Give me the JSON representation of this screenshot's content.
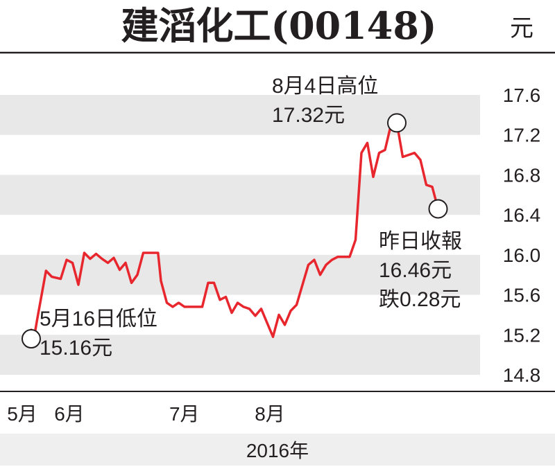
{
  "chart_data": {
    "type": "line",
    "title": "建滔化工(00148)",
    "unit": "元",
    "ylim": [
      14.8,
      17.6
    ],
    "yticks": [
      17.6,
      17.2,
      16.8,
      16.4,
      16.0,
      15.6,
      15.2,
      14.8
    ],
    "ytick_labels": [
      "17.6",
      "17.2",
      "16.8",
      "16.4",
      "16.0",
      "15.6",
      "15.2",
      "14.8"
    ],
    "xticks": [
      {
        "label": "5月",
        "t": 0
      },
      {
        "label": "6月",
        "t": 16
      },
      {
        "label": "7月",
        "t": 55
      },
      {
        "label": "8月",
        "t": 84
      }
    ],
    "xlabel": "2016年",
    "series": [
      {
        "color": "#e8262d",
        "points": [
          [
            4,
            15.25
          ],
          [
            5,
            15.18
          ],
          [
            6,
            15.35
          ],
          [
            9,
            15.84
          ],
          [
            11,
            15.78
          ],
          [
            14,
            15.76
          ],
          [
            16,
            15.95
          ],
          [
            18,
            15.92
          ],
          [
            20,
            15.7
          ],
          [
            22,
            16.02
          ],
          [
            24,
            15.96
          ],
          [
            26,
            16.01
          ],
          [
            28,
            15.96
          ],
          [
            30,
            15.92
          ],
          [
            32,
            15.97
          ],
          [
            34,
            15.85
          ],
          [
            36,
            15.92
          ],
          [
            38,
            15.72
          ],
          [
            40,
            15.8
          ],
          [
            42,
            16.02
          ],
          [
            45,
            16.02
          ],
          [
            47,
            16.02
          ],
          [
            48,
            15.74
          ],
          [
            50,
            15.52
          ],
          [
            52,
            15.48
          ],
          [
            54,
            15.52
          ],
          [
            56,
            15.48
          ],
          [
            58,
            15.48
          ],
          [
            60,
            15.48
          ],
          [
            62,
            15.48
          ],
          [
            64,
            15.72
          ],
          [
            66,
            15.72
          ],
          [
            68,
            15.55
          ],
          [
            70,
            15.58
          ],
          [
            72,
            15.42
          ],
          [
            74,
            15.52
          ],
          [
            76,
            15.48
          ],
          [
            78,
            15.46
          ],
          [
            80,
            15.39
          ],
          [
            82,
            15.46
          ],
          [
            84,
            15.32
          ],
          [
            86,
            15.18
          ],
          [
            88,
            15.4
          ],
          [
            90,
            15.3
          ],
          [
            92,
            15.44
          ],
          [
            94,
            15.5
          ],
          [
            96,
            15.7
          ],
          [
            98,
            15.9
          ],
          [
            100,
            15.95
          ],
          [
            102,
            15.8
          ],
          [
            104,
            15.9
          ],
          [
            106,
            15.95
          ],
          [
            108,
            15.98
          ],
          [
            110,
            15.98
          ],
          [
            112,
            15.98
          ],
          [
            114,
            16.15
          ],
          [
            116,
            17.02
          ],
          [
            118,
            17.12
          ],
          [
            120,
            16.78
          ],
          [
            122,
            17.02
          ],
          [
            124,
            17.05
          ],
          [
            126,
            17.3
          ],
          [
            128,
            17.32
          ],
          [
            130,
            16.98
          ],
          [
            132,
            17.0
          ],
          [
            134,
            17.02
          ],
          [
            136,
            16.95
          ],
          [
            138,
            16.7
          ],
          [
            140,
            16.68
          ],
          [
            142,
            16.46
          ]
        ]
      }
    ],
    "annotations": [
      {
        "name": "high",
        "lines": [
          "8月4日高位",
          "17.32元"
        ],
        "t": 128,
        "y": 17.32
      },
      {
        "name": "low",
        "lines": [
          "5月16日低位",
          "15.16元"
        ],
        "t": 4,
        "y": 15.16
      },
      {
        "name": "last",
        "lines": [
          "昨日收報",
          "16.46元",
          "跌0.28元"
        ],
        "t": 142,
        "y": 16.46
      }
    ]
  }
}
